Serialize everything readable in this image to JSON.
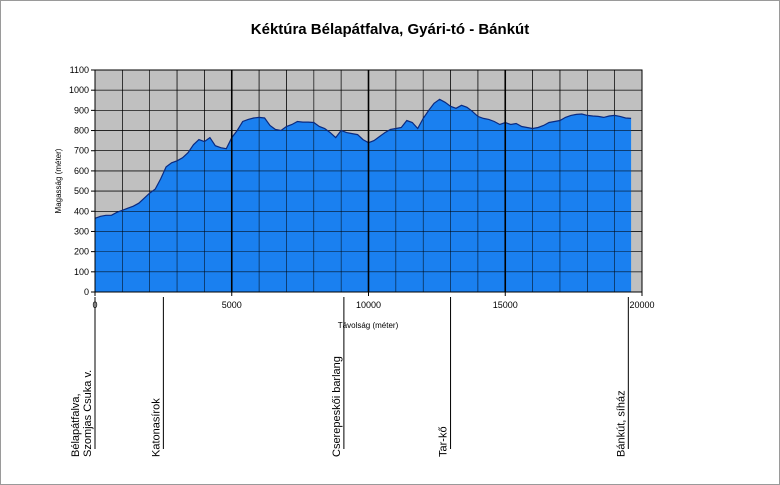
{
  "chart_data": {
    "type": "area",
    "title": "Kéktúra Bélapátfalva, Gyári-tó - Bánkút",
    "xlabel": "Távolság (méter)",
    "ylabel": "Magasság (méter)",
    "xlim": [
      0,
      20000
    ],
    "ylim": [
      0,
      1100
    ],
    "xticks": [
      0,
      5000,
      10000,
      15000,
      20000
    ],
    "yticks": [
      0,
      100,
      200,
      300,
      400,
      500,
      600,
      700,
      800,
      900,
      1000,
      1100
    ],
    "grid": true,
    "fill_color": "#1a80f0",
    "plot_background": "#c0c0c0",
    "series": [
      {
        "x": [
          0,
          200,
          400,
          600,
          800,
          1000,
          1200,
          1400,
          1600,
          1800,
          2000,
          2200,
          2400,
          2500,
          2600,
          2800,
          3000,
          3200,
          3400,
          3600,
          3800,
          4000,
          4200,
          4400,
          4600,
          4800,
          5000,
          5200,
          5400,
          5600,
          5800,
          6000,
          6200,
          6400,
          6600,
          6800,
          7000,
          7200,
          7400,
          7600,
          7800,
          8000,
          8200,
          8400,
          8600,
          8800,
          9000,
          9200,
          9400,
          9600,
          9800,
          10000,
          10200,
          10400,
          10600,
          10800,
          11000,
          11200,
          11400,
          11600,
          11800,
          12000,
          12200,
          12400,
          12600,
          12800,
          13000,
          13200,
          13400,
          13600,
          13800,
          14000,
          14200,
          14400,
          14600,
          14800,
          15000,
          15200,
          15400,
          15600,
          15800,
          16000,
          16200,
          16400,
          16600,
          16800,
          17000,
          17200,
          17400,
          17600,
          17800,
          18000,
          18200,
          18400,
          18600,
          18800,
          19000,
          19200,
          19400,
          19600
        ],
        "y": [
          365,
          375,
          380,
          380,
          395,
          405,
          415,
          425,
          440,
          465,
          490,
          510,
          560,
          590,
          620,
          640,
          650,
          665,
          690,
          730,
          755,
          745,
          765,
          725,
          715,
          710,
          765,
          800,
          845,
          855,
          862,
          865,
          862,
          825,
          805,
          800,
          820,
          830,
          845,
          842,
          842,
          840,
          820,
          810,
          790,
          765,
          800,
          790,
          785,
          780,
          755,
          740,
          750,
          770,
          790,
          805,
          810,
          815,
          850,
          840,
          810,
          860,
          900,
          935,
          955,
          940,
          920,
          910,
          925,
          915,
          895,
          870,
          860,
          855,
          845,
          830,
          840,
          830,
          835,
          820,
          815,
          810,
          815,
          825,
          840,
          845,
          850,
          865,
          875,
          880,
          882,
          875,
          872,
          870,
          865,
          872,
          875,
          870,
          862,
          860
        ]
      }
    ],
    "vertical_lines": [
      5000,
      10000,
      15000
    ],
    "landmarks": [
      {
        "x": 0,
        "label_lines": [
          "Bélapátfalva,",
          "Szomjas Csuka v."
        ]
      },
      {
        "x": 2500,
        "label_lines": [
          "Katonasírok"
        ]
      },
      {
        "x": 9100,
        "label_lines": [
          "Cserepeskői barlang"
        ]
      },
      {
        "x": 13000,
        "label_lines": [
          "Tar-kő"
        ]
      },
      {
        "x": 19500,
        "label_lines": [
          "Bánkút, síház"
        ]
      }
    ]
  }
}
